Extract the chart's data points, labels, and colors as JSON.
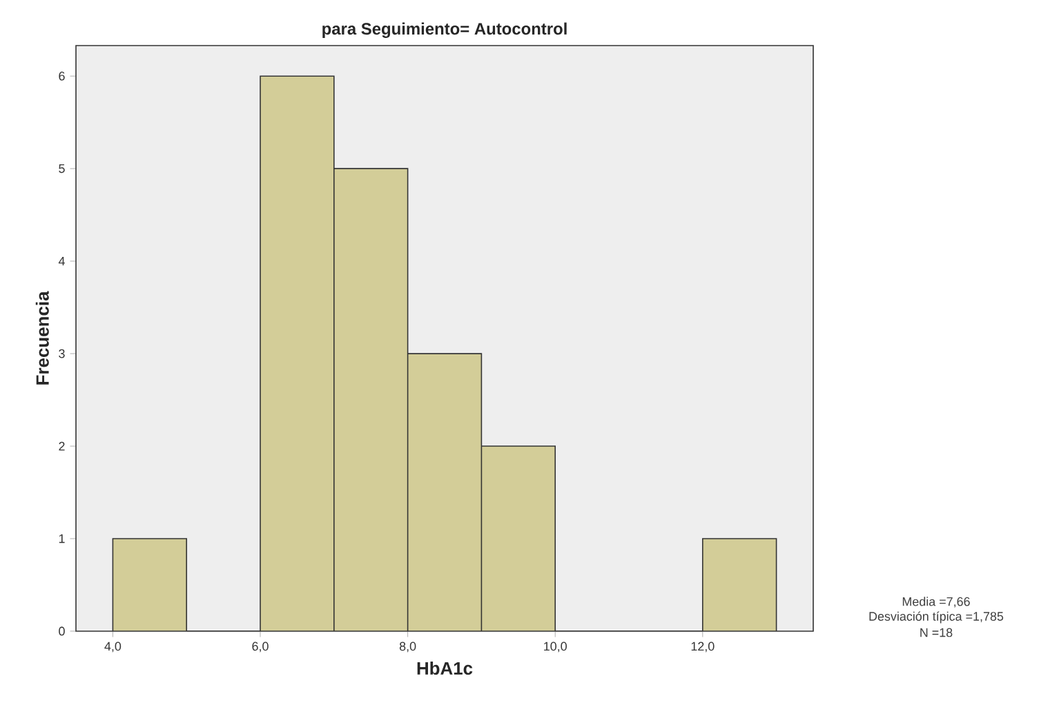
{
  "chart_data": {
    "type": "histogram",
    "title": "para Seguimiento= Autocontrol",
    "xlabel": "HbA1c",
    "ylabel": "Frecuencia",
    "bins": [
      4,
      5,
      6,
      7,
      8,
      9,
      10,
      11,
      12,
      13
    ],
    "values": [
      1,
      0,
      6,
      5,
      3,
      2,
      0,
      0,
      1
    ],
    "color": "#d3cd98",
    "xlim": [
      3.5,
      13.5
    ],
    "ylim": [
      0,
      6.33
    ],
    "xticks": [
      {
        "value": 4,
        "label": "4,0"
      },
      {
        "value": 6,
        "label": "6,0"
      },
      {
        "value": 8,
        "label": "8,0"
      },
      {
        "value": 10,
        "label": "10,0"
      },
      {
        "value": 12,
        "label": "12,0"
      }
    ],
    "yticks": [
      0,
      1,
      2,
      3,
      4,
      5,
      6
    ],
    "grid": false,
    "annotations": [
      "Media =7,66",
      "Desviación típica =1,785",
      "N =18"
    ]
  }
}
